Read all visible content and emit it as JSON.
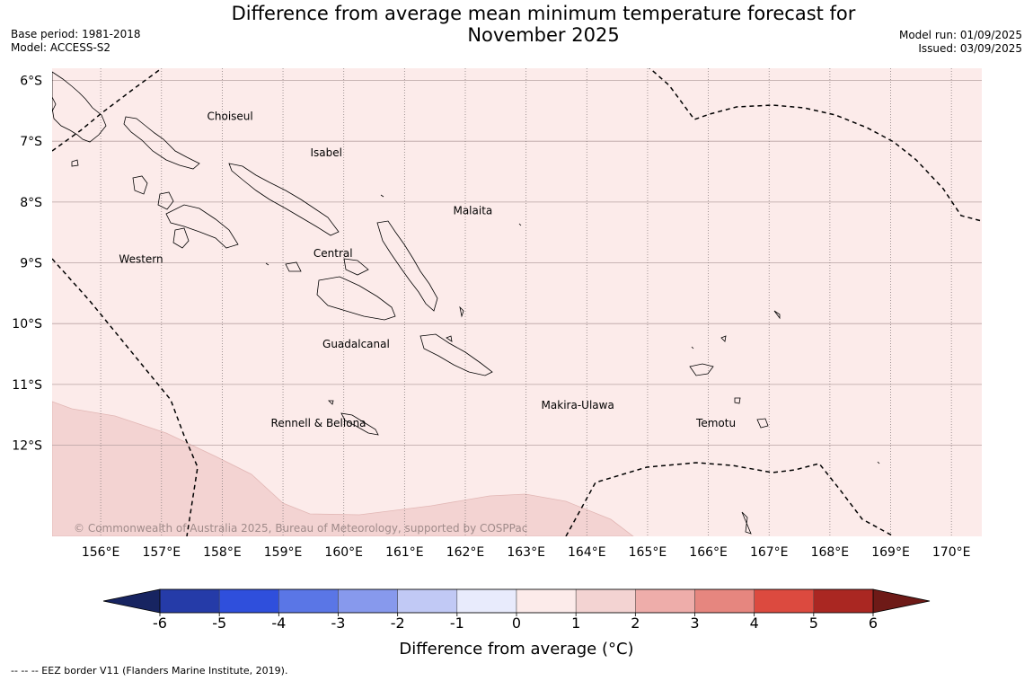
{
  "title_line1": "Difference from average mean minimum temperature forecast for",
  "title_line2": "November 2025",
  "base_period": "Base period: 1981-2018",
  "model": "Model: ACCESS-S2",
  "model_run": "Model run: 01/09/2025",
  "issued": "Issued: 03/09/2025",
  "map": {
    "lon_range": [
      155.2,
      170.5
    ],
    "lat_range": [
      -13.5,
      -5.8
    ],
    "lat_ticks": [
      {
        "value": -6,
        "label": "6°S"
      },
      {
        "value": -7,
        "label": "7°S"
      },
      {
        "value": -8,
        "label": "8°S"
      },
      {
        "value": -9,
        "label": "9°S"
      },
      {
        "value": -10,
        "label": "10°S"
      },
      {
        "value": -11,
        "label": "11°S"
      },
      {
        "value": -12,
        "label": "12°S"
      }
    ],
    "lon_ticks": [
      {
        "value": 156,
        "label": "156°E"
      },
      {
        "value": 157,
        "label": "157°E"
      },
      {
        "value": 158,
        "label": "158°E"
      },
      {
        "value": 159,
        "label": "159°E"
      },
      {
        "value": 160,
        "label": "160°E"
      },
      {
        "value": 161,
        "label": "161°E"
      },
      {
        "value": 162,
        "label": "162°E"
      },
      {
        "value": 163,
        "label": "163°E"
      },
      {
        "value": 164,
        "label": "164°E"
      },
      {
        "value": 165,
        "label": "165°E"
      },
      {
        "value": 166,
        "label": "166°E"
      },
      {
        "value": 167,
        "label": "167°E"
      },
      {
        "value": 168,
        "label": "168°E"
      },
      {
        "value": 169,
        "label": "169°E"
      },
      {
        "value": 170,
        "label": "170°E"
      }
    ],
    "background_category": "0 to 1",
    "background_color": "#fcebea",
    "warm_region_category": "1 to 2",
    "warm_region_color": "#f3d3d2",
    "province_labels": [
      {
        "name": "Choiseul",
        "lon": 157.75,
        "lat": -6.65
      },
      {
        "name": "Isabel",
        "lon": 159.45,
        "lat": -7.25
      },
      {
        "name": "Malaita",
        "lon": 161.8,
        "lat": -8.2
      },
      {
        "name": "Western",
        "lon": 156.3,
        "lat": -9.0
      },
      {
        "name": "Central",
        "lon": 159.5,
        "lat": -8.9
      },
      {
        "name": "Guadalcanal",
        "lon": 159.65,
        "lat": -10.4
      },
      {
        "name": "Makira-Ulawa",
        "lon": 163.25,
        "lat": -11.4
      },
      {
        "name": "Rennell & Bellona",
        "lon": 158.8,
        "lat": -11.7
      },
      {
        "name": "Temotu",
        "lon": 165.8,
        "lat": -11.7
      }
    ],
    "copyright": "© Commonwealth of Australia 2025, Bureau of Meteorology, supported by COSPPac"
  },
  "colorbar": {
    "label": "Difference from average (°C)",
    "tick_labels": [
      "-6",
      "-5",
      "-4",
      "-3",
      "-2",
      "-1",
      "0",
      "1",
      "2",
      "3",
      "4",
      "5",
      "6"
    ],
    "colors": [
      "#253ba8",
      "#2f4fdc",
      "#5a76e6",
      "#8799ed",
      "#c1c9f5",
      "#e8ebfc",
      "#fcebea",
      "#f3d3d2",
      "#eeadaa",
      "#e6867f",
      "#dc4a3f",
      "#aa2722"
    ],
    "extend_low_color": "#172461",
    "extend_high_color": "#6e1a17"
  },
  "footnote": "--  --  -- EEZ border V11 (Flanders Marine Institute, 2019)."
}
